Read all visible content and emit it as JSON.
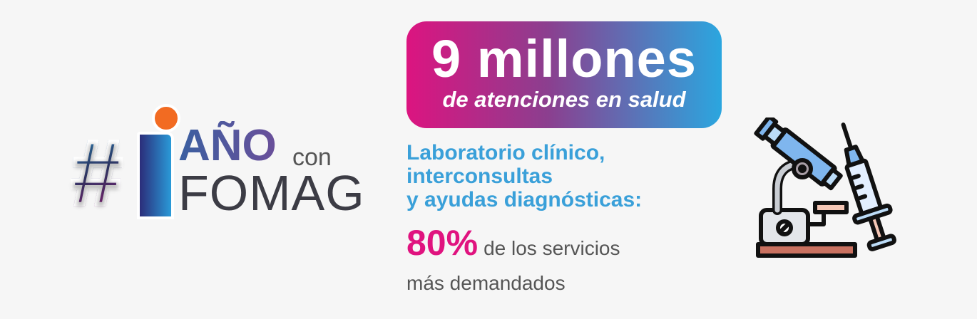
{
  "logo": {
    "hash": "#",
    "one": "1",
    "ano": "AÑO",
    "con": "con",
    "fomag": "FOMAG"
  },
  "headline": {
    "big": "9 millones",
    "small": "de atenciones en salud"
  },
  "subtitle": [
    "Laboratorio clínico,",
    "interconsultas",
    "y ayudas diagnósticas:"
  ],
  "stat": {
    "value": "80%",
    "line1": "de los servicios",
    "line2": "más demandados"
  },
  "icons": [
    "microscope-icon",
    "syringe-icon"
  ],
  "colors": {
    "magenta": "#e0137f",
    "blue": "#2ba6df",
    "orange": "#f26b22"
  }
}
